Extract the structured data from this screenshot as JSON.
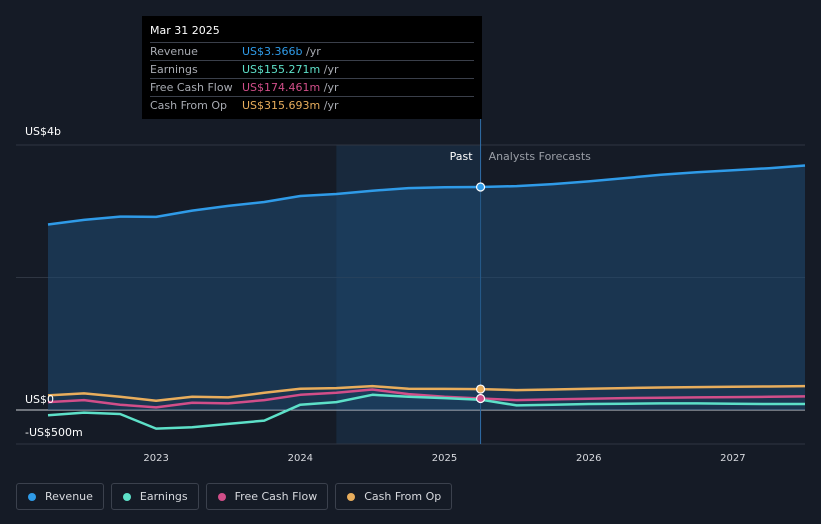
{
  "colors": {
    "revenue": "#2f9be8",
    "earnings": "#5de0c8",
    "free_cash_flow": "#d14e89",
    "cash_from_op": "#e8ad5c",
    "background": "#151b26"
  },
  "chart_data": {
    "type": "line",
    "x_ticks": [
      "2023",
      "2024",
      "2025",
      "2026",
      "2027"
    ],
    "y_ticks": [
      "US$4b",
      "US$0",
      "-US$500m"
    ],
    "regions": {
      "past_label": "Past",
      "forecast_label": "Analysts Forecasts"
    },
    "ylim": [
      -500,
      4000
    ],
    "xlim": [
      2022.25,
      2027.5
    ],
    "past_range": [
      2024.25,
      2025.25
    ],
    "divider_x": 2025.25,
    "series": [
      {
        "name": "Revenue",
        "key": "revenue",
        "points": [
          [
            2022.25,
            2800
          ],
          [
            2022.5,
            2870
          ],
          [
            2022.75,
            2920
          ],
          [
            2023.0,
            2915
          ],
          [
            2023.25,
            3010
          ],
          [
            2023.5,
            3080
          ],
          [
            2023.75,
            3140
          ],
          [
            2024.0,
            3230
          ],
          [
            2024.25,
            3260
          ],
          [
            2024.5,
            3310
          ],
          [
            2024.75,
            3350
          ],
          [
            2025.0,
            3362
          ],
          [
            2025.25,
            3366
          ],
          [
            2025.5,
            3380
          ],
          [
            2025.75,
            3410
          ],
          [
            2026.0,
            3450
          ],
          [
            2026.25,
            3500
          ],
          [
            2026.5,
            3550
          ],
          [
            2026.75,
            3590
          ],
          [
            2027.0,
            3620
          ],
          [
            2027.25,
            3650
          ],
          [
            2027.5,
            3690
          ]
        ]
      },
      {
        "name": "Earnings",
        "key": "earnings",
        "points": [
          [
            2022.25,
            -80
          ],
          [
            2022.5,
            -40
          ],
          [
            2022.75,
            -60
          ],
          [
            2023.0,
            -280
          ],
          [
            2023.25,
            -260
          ],
          [
            2023.5,
            -210
          ],
          [
            2023.75,
            -160
          ],
          [
            2024.0,
            80
          ],
          [
            2024.25,
            120
          ],
          [
            2024.5,
            230
          ],
          [
            2024.75,
            200
          ],
          [
            2025.0,
            180
          ],
          [
            2025.25,
            155
          ],
          [
            2025.5,
            70
          ],
          [
            2025.75,
            80
          ],
          [
            2026.0,
            90
          ],
          [
            2026.25,
            95
          ],
          [
            2026.5,
            100
          ],
          [
            2026.75,
            100
          ],
          [
            2027.0,
            95
          ],
          [
            2027.25,
            90
          ],
          [
            2027.5,
            90
          ]
        ]
      },
      {
        "name": "Free Cash Flow",
        "key": "free_cash_flow",
        "points": [
          [
            2022.25,
            120
          ],
          [
            2022.5,
            150
          ],
          [
            2022.75,
            80
          ],
          [
            2023.0,
            40
          ],
          [
            2023.25,
            110
          ],
          [
            2023.5,
            100
          ],
          [
            2023.75,
            150
          ],
          [
            2024.0,
            230
          ],
          [
            2024.25,
            260
          ],
          [
            2024.5,
            310
          ],
          [
            2024.75,
            240
          ],
          [
            2025.0,
            200
          ],
          [
            2025.25,
            174
          ],
          [
            2025.5,
            150
          ],
          [
            2025.75,
            160
          ],
          [
            2026.0,
            170
          ],
          [
            2026.25,
            180
          ],
          [
            2026.5,
            185
          ],
          [
            2026.75,
            190
          ],
          [
            2027.0,
            195
          ],
          [
            2027.25,
            200
          ],
          [
            2027.5,
            205
          ]
        ]
      },
      {
        "name": "Cash From Op",
        "key": "cash_from_op",
        "points": [
          [
            2022.25,
            220
          ],
          [
            2022.5,
            250
          ],
          [
            2022.75,
            200
          ],
          [
            2023.0,
            140
          ],
          [
            2023.25,
            200
          ],
          [
            2023.5,
            190
          ],
          [
            2023.75,
            260
          ],
          [
            2024.0,
            320
          ],
          [
            2024.25,
            330
          ],
          [
            2024.5,
            360
          ],
          [
            2024.75,
            320
          ],
          [
            2025.0,
            318
          ],
          [
            2025.25,
            316
          ],
          [
            2025.5,
            300
          ],
          [
            2025.75,
            310
          ],
          [
            2026.0,
            320
          ],
          [
            2026.25,
            330
          ],
          [
            2026.5,
            340
          ],
          [
            2026.75,
            345
          ],
          [
            2027.0,
            350
          ],
          [
            2027.25,
            355
          ],
          [
            2027.5,
            360
          ]
        ]
      }
    ]
  },
  "tooltip": {
    "date": "Mar 31 2025",
    "rows": [
      {
        "label": "Revenue",
        "value": "US$3.366b",
        "unit": "/yr",
        "key": "revenue"
      },
      {
        "label": "Earnings",
        "value": "US$155.271m",
        "unit": "/yr",
        "key": "earnings"
      },
      {
        "label": "Free Cash Flow",
        "value": "US$174.461m",
        "unit": "/yr",
        "key": "free_cash_flow"
      },
      {
        "label": "Cash From Op",
        "value": "US$315.693m",
        "unit": "/yr",
        "key": "cash_from_op"
      }
    ]
  },
  "legend": [
    {
      "label": "Revenue",
      "key": "revenue"
    },
    {
      "label": "Earnings",
      "key": "earnings"
    },
    {
      "label": "Free Cash Flow",
      "key": "free_cash_flow"
    },
    {
      "label": "Cash From Op",
      "key": "cash_from_op"
    }
  ]
}
